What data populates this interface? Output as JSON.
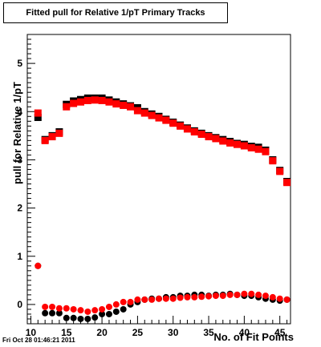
{
  "chart_data": {
    "type": "scatter",
    "title": "Fitted pull for Relative 1/pT Primary Tracks",
    "xlabel": "No. of Fit Points",
    "ylabel": "pull for Relative 1/pT",
    "xlim": [
      9.5,
      46.5
    ],
    "ylim": [
      -0.4,
      5.6
    ],
    "x_ticks": [
      10,
      15,
      20,
      25,
      30,
      35,
      40,
      45
    ],
    "y_ticks": [
      0,
      1,
      2,
      3,
      4,
      5
    ],
    "grid": false,
    "series": [
      {
        "color": "#000000",
        "marker": "circle",
        "x": [
          11,
          12,
          13,
          14,
          15,
          16,
          17,
          18,
          19,
          20,
          21,
          22,
          23,
          24,
          25,
          26,
          27,
          28,
          29,
          30,
          31,
          32,
          33,
          34,
          35,
          36,
          37,
          38,
          39,
          40,
          41,
          42,
          43,
          44,
          45,
          46
        ],
        "y": [
          0.8,
          -0.18,
          -0.18,
          -0.18,
          -0.28,
          -0.28,
          -0.3,
          -0.3,
          -0.27,
          -0.2,
          -0.2,
          -0.15,
          -0.1,
          0.0,
          0.05,
          0.1,
          0.12,
          0.12,
          0.15,
          0.15,
          0.18,
          0.18,
          0.2,
          0.2,
          0.18,
          0.2,
          0.2,
          0.22,
          0.2,
          0.18,
          0.18,
          0.15,
          0.12,
          0.1,
          0.08,
          0.1
        ]
      },
      {
        "color": "#ff0000",
        "marker": "circle",
        "x": [
          11,
          12,
          13,
          14,
          15,
          16,
          17,
          18,
          19,
          20,
          21,
          22,
          23,
          24,
          25,
          26,
          27,
          28,
          29,
          30,
          31,
          32,
          33,
          34,
          35,
          36,
          37,
          38,
          39,
          40,
          41,
          42,
          43,
          44,
          45,
          46
        ],
        "y": [
          0.8,
          -0.05,
          -0.05,
          -0.08,
          -0.08,
          -0.1,
          -0.12,
          -0.15,
          -0.12,
          -0.1,
          -0.05,
          0.0,
          0.05,
          0.05,
          0.1,
          0.1,
          0.1,
          0.12,
          0.12,
          0.12,
          0.14,
          0.15,
          0.15,
          0.16,
          0.17,
          0.18,
          0.18,
          0.2,
          0.2,
          0.22,
          0.22,
          0.2,
          0.18,
          0.15,
          0.12,
          0.1
        ]
      },
      {
        "color": "#000000",
        "marker": "square",
        "x": [
          11,
          12,
          13,
          14,
          15,
          16,
          17,
          18,
          19,
          20,
          21,
          22,
          23,
          24,
          25,
          26,
          27,
          28,
          29,
          30,
          31,
          32,
          33,
          34,
          35,
          36,
          37,
          38,
          39,
          40,
          41,
          42,
          43,
          44,
          45,
          46
        ],
        "y": [
          3.88,
          3.42,
          3.5,
          3.58,
          4.15,
          4.22,
          4.25,
          4.28,
          4.28,
          4.28,
          4.24,
          4.2,
          4.16,
          4.12,
          4.08,
          4.0,
          3.95,
          3.9,
          3.84,
          3.78,
          3.72,
          3.66,
          3.6,
          3.55,
          3.5,
          3.46,
          3.42,
          3.38,
          3.34,
          3.32,
          3.28,
          3.26,
          3.2,
          3.0,
          2.78,
          2.55
        ]
      },
      {
        "color": "#ff0000",
        "marker": "square",
        "x": [
          11,
          12,
          13,
          14,
          15,
          16,
          17,
          18,
          19,
          20,
          21,
          22,
          23,
          24,
          25,
          26,
          27,
          28,
          29,
          30,
          31,
          32,
          33,
          34,
          35,
          36,
          37,
          38,
          39,
          40,
          41,
          42,
          43,
          44,
          45,
          46
        ],
        "y": [
          3.97,
          3.4,
          3.48,
          3.55,
          4.1,
          4.17,
          4.2,
          4.23,
          4.24,
          4.23,
          4.2,
          4.16,
          4.13,
          4.1,
          4.02,
          3.97,
          3.92,
          3.87,
          3.82,
          3.76,
          3.7,
          3.64,
          3.58,
          3.53,
          3.48,
          3.44,
          3.39,
          3.35,
          3.32,
          3.29,
          3.25,
          3.22,
          3.17,
          2.98,
          2.76,
          2.53
        ]
      }
    ]
  },
  "footer": {
    "timestamp": "Fri Oct 28 01:46:21 2011"
  }
}
